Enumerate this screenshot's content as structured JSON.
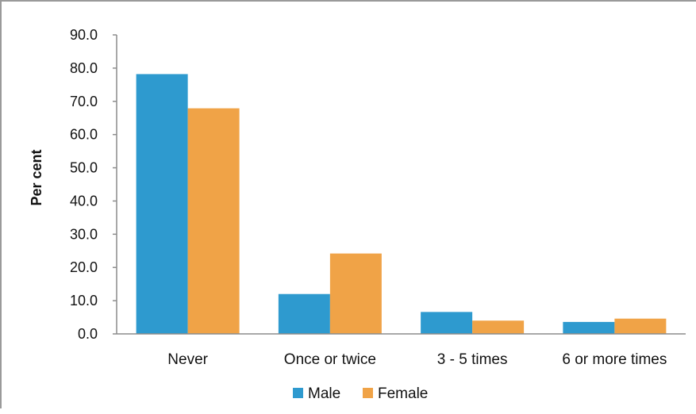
{
  "chart_data": {
    "type": "bar",
    "categories": [
      "Never",
      "Once or twice",
      "3 - 5 times",
      "6 or more times"
    ],
    "series": [
      {
        "name": "Male",
        "values": [
          78.2,
          12.0,
          6.6,
          3.6
        ],
        "color": "#2e9acf"
      },
      {
        "name": "Female",
        "values": [
          67.9,
          24.2,
          4.0,
          4.6
        ],
        "color": "#f0a347"
      }
    ],
    "title": "",
    "xlabel": "",
    "ylabel": "Per cent",
    "ylim": [
      0,
      90
    ],
    "yticks": [
      "0.0",
      "10.0",
      "20.0",
      "30.0",
      "40.0",
      "50.0",
      "60.0",
      "70.0",
      "80.0",
      "90.0"
    ],
    "grid": false,
    "legend": "bottom"
  }
}
